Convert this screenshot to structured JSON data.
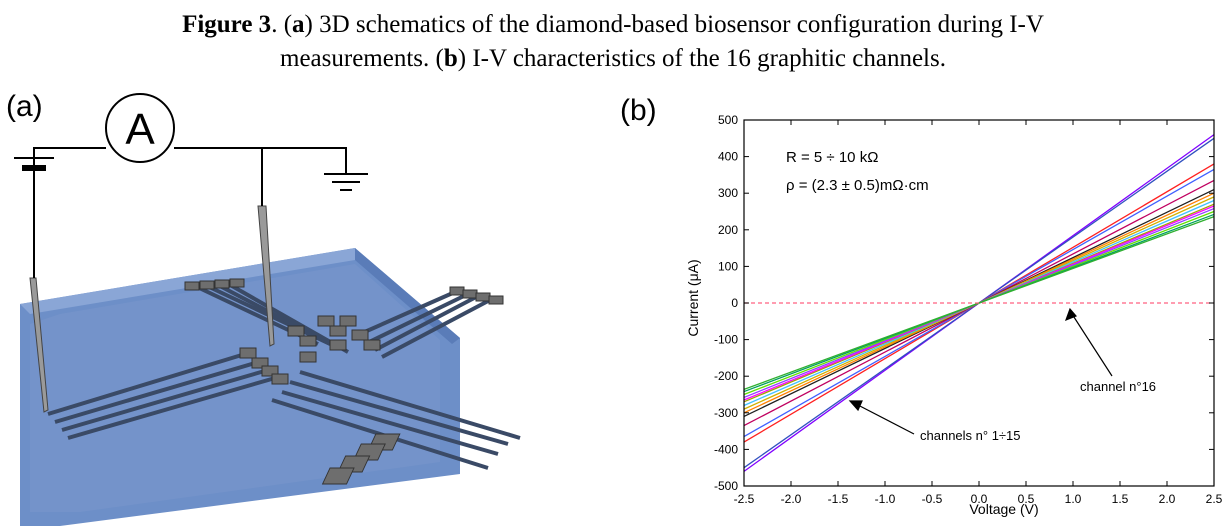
{
  "caption": {
    "figure_label": "Figure 3",
    "sep": ". (",
    "a_label": "a",
    "a_text": ") 3D schematics of the diamond-based biosensor configuration during I-V",
    "line2_pre": "measurements. (",
    "b_label": "b",
    "b_text": ") I-V characteristics of the 16 graphitic channels."
  },
  "panels": {
    "a": "(a)",
    "b": "(b)"
  },
  "schematic": {
    "ammeter_symbol": "A"
  },
  "chart_data": {
    "type": "line",
    "xlabel": "Voltage (V)",
    "ylabel": "Current (μA)",
    "xlim": [
      -2.5,
      2.5
    ],
    "ylim": [
      -500,
      500
    ],
    "xticks": [
      "-2.5",
      "-2.0",
      "-1.5",
      "-1.0",
      "-0.5",
      "0.0",
      "0.5",
      "1.0",
      "1.5",
      "2.0",
      "2.5"
    ],
    "yticks": [
      "500",
      "400",
      "300",
      "200",
      "100",
      "0",
      "-100",
      "-200",
      "-300",
      "-400",
      "-500"
    ],
    "grid": false,
    "annotations": [
      {
        "text": "R = 5 ÷ 10 kΩ"
      },
      {
        "text": "ρ = (2.3 ± 0.5)mΩ·cm"
      },
      {
        "text": "channel n°16",
        "points_to": [
          0.0,
          0
        ]
      },
      {
        "text": "channels n° 1÷15",
        "points_to": [
          -1.5,
          -270
        ]
      }
    ],
    "series": [
      {
        "x": [
          -2.5,
          2.5
        ],
        "y": [
          -460,
          460
        ],
        "color": "#8000ff"
      },
      {
        "x": [
          -2.5,
          2.5
        ],
        "y": [
          -450,
          450
        ],
        "color": "#3050c0"
      },
      {
        "x": [
          -2.5,
          2.5
        ],
        "y": [
          -380,
          380
        ],
        "color": "#ff2020"
      },
      {
        "x": [
          -2.5,
          2.5
        ],
        "y": [
          -365,
          365
        ],
        "color": "#4060ff"
      },
      {
        "x": [
          -2.5,
          2.5
        ],
        "y": [
          -335,
          335
        ],
        "color": "#c00060"
      },
      {
        "x": [
          -2.5,
          2.5
        ],
        "y": [
          -310,
          310
        ],
        "color": "#202020"
      },
      {
        "x": [
          -2.5,
          2.5
        ],
        "y": [
          -300,
          300
        ],
        "color": "#ff8000"
      },
      {
        "x": [
          -2.5,
          2.5
        ],
        "y": [
          -290,
          290
        ],
        "color": "#d0b000"
      },
      {
        "x": [
          -2.5,
          2.5
        ],
        "y": [
          -280,
          280
        ],
        "color": "#40c0ff"
      },
      {
        "x": [
          -2.5,
          2.5
        ],
        "y": [
          -270,
          270
        ],
        "color": "#a0a000"
      },
      {
        "x": [
          -2.5,
          2.5
        ],
        "y": [
          -265,
          265
        ],
        "color": "#ff00ff"
      },
      {
        "x": [
          -2.5,
          2.5
        ],
        "y": [
          -258,
          258
        ],
        "color": "#9040ff"
      },
      {
        "x": [
          -2.5,
          2.5
        ],
        "y": [
          -250,
          250
        ],
        "color": "#60e000"
      },
      {
        "x": [
          -2.5,
          2.5
        ],
        "y": [
          -242,
          242
        ],
        "color": "#00a060"
      },
      {
        "x": [
          -2.5,
          2.5
        ],
        "y": [
          -236,
          236
        ],
        "color": "#30b030"
      },
      {
        "x": [
          -2.5,
          2.5
        ],
        "y": [
          0,
          0
        ],
        "color": "#ff6080",
        "dashed": true
      }
    ]
  }
}
